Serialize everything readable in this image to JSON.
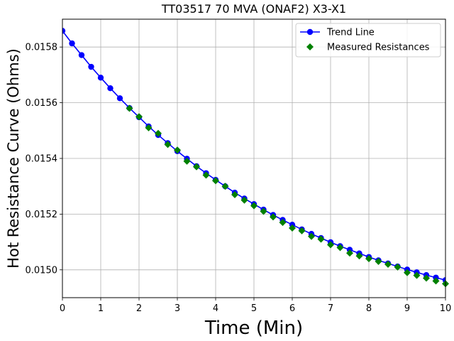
{
  "chart_data": {
    "type": "line",
    "title": "TT03517 70 MVA (ONAF2) X3-X1",
    "xlabel": "Time (Min)",
    "ylabel": "Hot Resistance Curve (Ohms)",
    "xlim": [
      0,
      10
    ],
    "ylim": [
      0.0149,
      0.0159
    ],
    "xticks": [
      "0",
      "1",
      "2",
      "3",
      "4",
      "5",
      "6",
      "7",
      "8",
      "9",
      "10"
    ],
    "yticks": [
      "0.0150",
      "0.0152",
      "0.0154",
      "0.0156",
      "0.0158"
    ],
    "grid": true,
    "legend_position": "top-right",
    "series": [
      {
        "name": "Trend Line",
        "color": "#0000ff",
        "marker": "circle",
        "x": [
          0,
          0.25,
          0.5,
          0.75,
          1,
          1.25,
          1.5,
          1.75,
          2,
          2.25,
          2.5,
          2.75,
          3,
          3.25,
          3.5,
          3.75,
          4,
          4.25,
          4.5,
          4.75,
          5,
          5.25,
          5.5,
          5.75,
          6,
          6.25,
          6.5,
          6.75,
          7,
          7.25,
          7.5,
          7.75,
          8,
          8.25,
          8.5,
          8.75,
          9,
          9.25,
          9.5,
          9.75,
          10
        ],
        "y": [
          0.015858,
          0.015813,
          0.015771,
          0.015729,
          0.01569,
          0.015652,
          0.015616,
          0.015581,
          0.015548,
          0.015515,
          0.015484,
          0.015455,
          0.015426,
          0.015399,
          0.015372,
          0.015347,
          0.015323,
          0.0153,
          0.015277,
          0.015256,
          0.015236,
          0.015216,
          0.015197,
          0.015179,
          0.015162,
          0.015145,
          0.015129,
          0.015114,
          0.015099,
          0.015085,
          0.015072,
          0.015059,
          0.015046,
          0.015034,
          0.015023,
          0.015012,
          0.015001,
          0.014991,
          0.014981,
          0.014972,
          0.014963
        ]
      },
      {
        "name": "Measured Resistances",
        "color": "#008000",
        "marker": "diamond",
        "x": [
          1.75,
          2,
          2.25,
          2.5,
          2.75,
          3,
          3.25,
          3.5,
          3.75,
          4,
          4.25,
          4.5,
          4.75,
          5,
          5.25,
          5.5,
          5.75,
          6,
          6.25,
          6.5,
          6.75,
          7,
          7.25,
          7.5,
          7.75,
          8,
          8.25,
          8.5,
          8.75,
          9,
          9.25,
          9.5,
          9.75,
          10
        ],
        "y": [
          0.01558,
          0.01555,
          0.01551,
          0.01549,
          0.01545,
          0.01543,
          0.01539,
          0.01537,
          0.01534,
          0.01532,
          0.0153,
          0.01527,
          0.01525,
          0.01523,
          0.01521,
          0.01519,
          0.01517,
          0.01515,
          0.01514,
          0.01512,
          0.01511,
          0.01509,
          0.01508,
          0.01506,
          0.01505,
          0.01504,
          0.01503,
          0.01502,
          0.01501,
          0.01499,
          0.01498,
          0.01497,
          0.01496,
          0.01495
        ]
      }
    ]
  }
}
